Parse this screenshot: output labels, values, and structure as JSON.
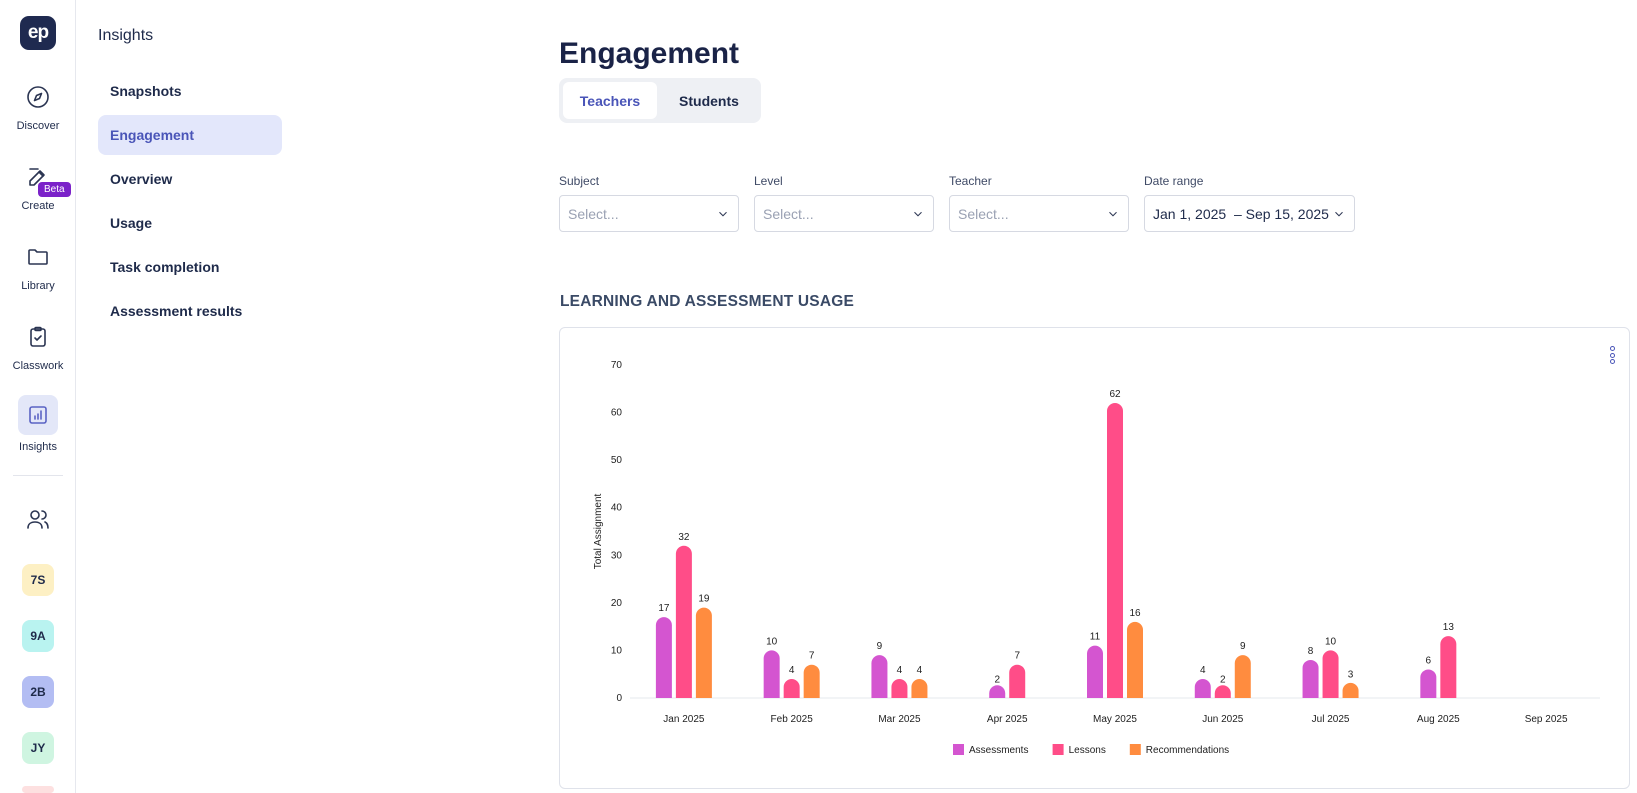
{
  "app": {
    "logo_text": "ep"
  },
  "rail": {
    "items": [
      {
        "label": "Discover",
        "icon": "compass-icon"
      },
      {
        "label": "Create",
        "icon": "pencil-icon",
        "badge": "Beta"
      },
      {
        "label": "Library",
        "icon": "folder-icon"
      },
      {
        "label": "Classwork",
        "icon": "clipboard-icon"
      },
      {
        "label": "Insights",
        "icon": "chart-icon",
        "active": true
      }
    ],
    "people_icon": "users-icon",
    "classes": [
      {
        "label": "7S",
        "color": "#fdf0c4"
      },
      {
        "label": "9A",
        "color": "#b9f3f0"
      },
      {
        "label": "2B",
        "color": "#b3bdf3"
      },
      {
        "label": "JY",
        "color": "#cff5e1"
      }
    ]
  },
  "sidebar": {
    "title": "Insights",
    "items": [
      {
        "label": "Snapshots"
      },
      {
        "label": "Engagement",
        "active": true
      },
      {
        "label": "Overview"
      },
      {
        "label": "Usage"
      },
      {
        "label": "Task completion"
      },
      {
        "label": "Assessment results"
      }
    ]
  },
  "main": {
    "title": "Engagement",
    "tabs": [
      {
        "label": "Teachers",
        "active": true
      },
      {
        "label": "Students"
      }
    ],
    "filters": [
      {
        "label": "Subject",
        "placeholder": "Select..."
      },
      {
        "label": "Level",
        "placeholder": "Select..."
      },
      {
        "label": "Teacher",
        "placeholder": "Select..."
      },
      {
        "label": "Date range",
        "value": "Jan 1, 2025  – Sep 15, 2025"
      }
    ],
    "section_title": "LEARNING AND ASSESSMENT USAGE"
  },
  "chart_data": {
    "type": "bar",
    "ylabel": "Total Assignment",
    "xlabel": "",
    "ylim": [
      0,
      70
    ],
    "yticks": [
      0,
      10,
      20,
      30,
      40,
      50,
      60,
      70
    ],
    "categories": [
      "Jan 2025",
      "Feb 2025",
      "Mar 2025",
      "Apr 2025",
      "May 2025",
      "Jun 2025",
      "Jul 2025",
      "Aug 2025",
      "Sep 2025"
    ],
    "series": [
      {
        "name": "Assessments",
        "color": "#d455d0",
        "values": [
          17,
          10,
          9,
          2,
          11,
          4,
          8,
          6,
          null
        ]
      },
      {
        "name": "Lessons",
        "color": "#ff4d88",
        "values": [
          32,
          4,
          4,
          7,
          62,
          2,
          10,
          13,
          null
        ]
      },
      {
        "name": "Recommendations",
        "color": "#ff8c3f",
        "values": [
          19,
          7,
          4,
          null,
          16,
          9,
          3,
          null,
          null
        ]
      }
    ],
    "legend_position": "bottom",
    "grid": false
  }
}
